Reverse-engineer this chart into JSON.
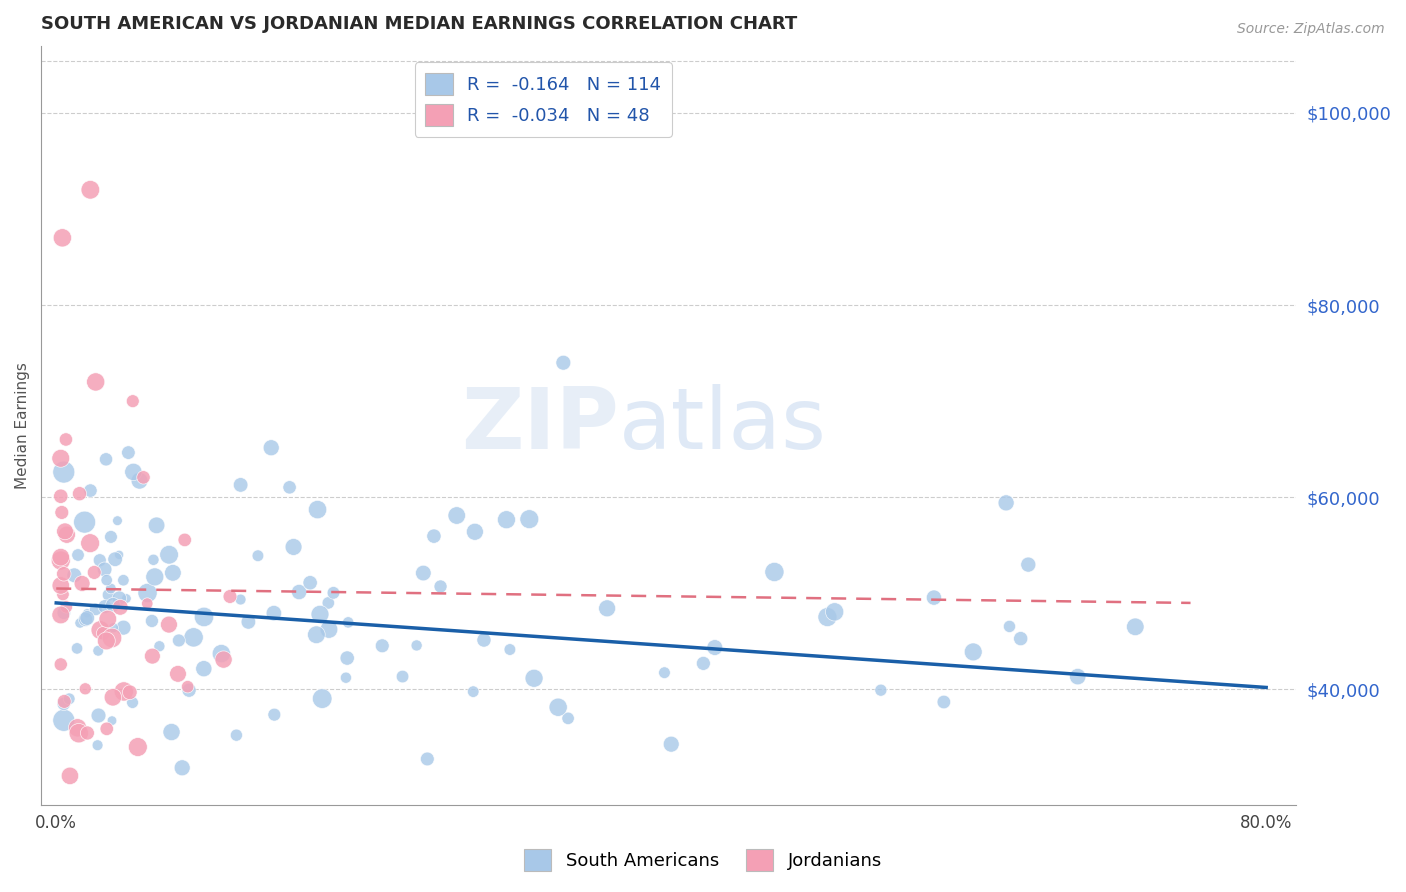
{
  "title": "SOUTH AMERICAN VS JORDANIAN MEDIAN EARNINGS CORRELATION CHART",
  "source": "Source: ZipAtlas.com",
  "ylabel": "Median Earnings",
  "xlim": [
    -0.01,
    0.82
  ],
  "ylim": [
    28000,
    107000
  ],
  "xticks": [
    0.0,
    0.1,
    0.2,
    0.3,
    0.4,
    0.5,
    0.6,
    0.7,
    0.8
  ],
  "xtick_labels": [
    "0.0%",
    "",
    "",
    "",
    "",
    "",
    "",
    "",
    "80.0%"
  ],
  "ytick_labels_right": [
    "$40,000",
    "$60,000",
    "$80,000",
    "$100,000"
  ],
  "ytick_values_right": [
    40000,
    60000,
    80000,
    100000
  ],
  "blue_color": "#a8c8e8",
  "pink_color": "#f4a0b5",
  "blue_line_color": "#1a5fa8",
  "pink_line_color": "#e07080",
  "R_blue": -0.164,
  "N_blue": 114,
  "R_pink": -0.034,
  "N_pink": 48,
  "legend_label_blue": "South Americans",
  "legend_label_pink": "Jordanians",
  "watermark_zip": "ZIP",
  "watermark_atlas": "atlas",
  "background_color": "#ffffff",
  "title_color": "#2a2a2a",
  "title_fontsize": 13,
  "axis_label_color": "#555555",
  "right_tick_color": "#3366cc",
  "dot_size": 120
}
